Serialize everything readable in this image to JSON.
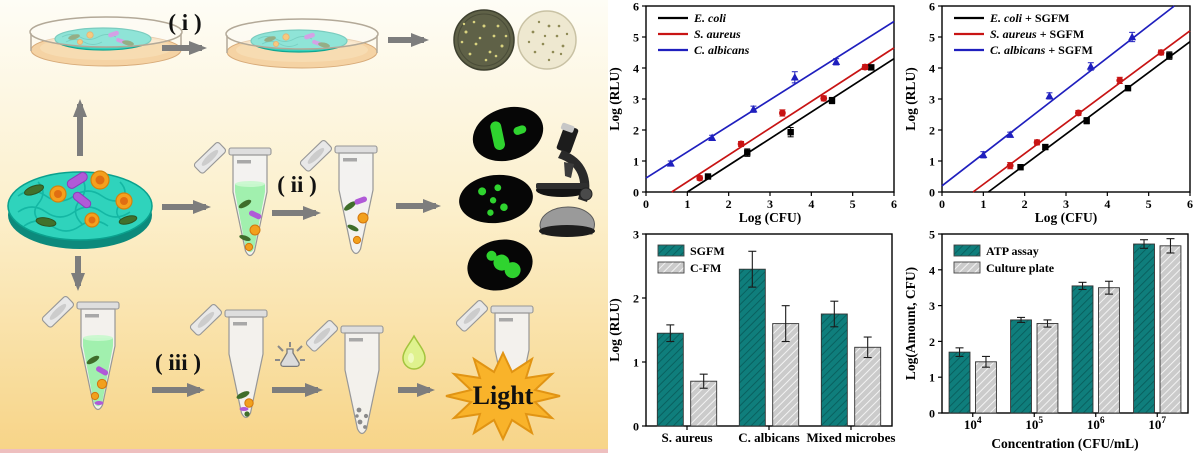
{
  "figure": {
    "left_panel_bg_top": "#fefdf6",
    "left_panel_bg_mid": "#fcf0cd",
    "left_panel_bg_bottom": "#f7d487",
    "accent_teal": "#0f7e7c",
    "arrow_gray": "#7d7d7d"
  },
  "diagram": {
    "step_labels": {
      "step1": "( i )",
      "step2": "( ii )",
      "step3": "( iii )"
    },
    "light_label": "Light"
  },
  "chart_data": [
    {
      "id": "calibration-curves",
      "position": "top-left",
      "type": "scatter",
      "xlabel": "Log (CFU)",
      "ylabel": "Log (RLU)",
      "xlim": [
        0,
        6
      ],
      "ylim": [
        0,
        6
      ],
      "xticks": [
        "0",
        "1",
        "2",
        "3",
        "4",
        "5",
        "6"
      ],
      "yticks": [
        "0",
        "1",
        "2",
        "3",
        "4",
        "5",
        "6"
      ],
      "legend_position": "top-left",
      "series": [
        {
          "name": "E. coli",
          "name_italic": "E. coli",
          "name_rest": "",
          "color": "#000000",
          "marker": "square",
          "x": [
            1.5,
            2.45,
            3.5,
            4.5,
            5.45
          ],
          "y": [
            0.5,
            1.27,
            1.93,
            2.95,
            4.02
          ],
          "yerr": [
            0.08,
            0.12,
            0.15,
            0.1,
            0.08
          ],
          "fit_line": {
            "x1": 1.0,
            "y1": 0,
            "x2": 6,
            "y2": 4.3
          }
        },
        {
          "name": "S. aureus",
          "name_italic": "S. aureus",
          "name_rest": "",
          "color": "#c81414",
          "marker": "circle",
          "x": [
            1.3,
            2.3,
            3.3,
            4.3,
            5.3
          ],
          "y": [
            0.45,
            1.55,
            2.55,
            3.02,
            4.03
          ],
          "yerr": [
            0.07,
            0.08,
            0.1,
            0.08,
            0.08
          ],
          "fit_line": {
            "x1": 0.62,
            "y1": 0,
            "x2": 6,
            "y2": 4.65
          }
        },
        {
          "name": "C. albicans",
          "name_italic": "C. albicans",
          "name_rest": "",
          "color": "#1f1fbe",
          "marker": "triangle",
          "x": [
            0.6,
            1.6,
            2.6,
            3.6,
            4.6
          ],
          "y": [
            0.92,
            1.75,
            2.67,
            3.7,
            4.2
          ],
          "yerr": [
            0.08,
            0.08,
            0.1,
            0.18,
            0.1
          ],
          "fit_line": {
            "x1": 0,
            "y1": 0.45,
            "x2": 6,
            "y2": 5.5
          }
        }
      ]
    },
    {
      "id": "calibration-curves-sgfm",
      "position": "top-right",
      "type": "scatter",
      "xlabel": "Log (CFU)",
      "ylabel": "Log (RLU)",
      "xlim": [
        0,
        6
      ],
      "ylim": [
        0,
        6
      ],
      "xticks": [
        "0",
        "1",
        "2",
        "3",
        "4",
        "5",
        "6"
      ],
      "yticks": [
        "0",
        "1",
        "2",
        "3",
        "4",
        "5",
        "6"
      ],
      "legend_position": "top-left",
      "series": [
        {
          "name": "E. coli + SGFM",
          "name_italic": "E. coli",
          "name_rest": " + SGFM",
          "color": "#000000",
          "marker": "square",
          "x": [
            1.9,
            2.5,
            3.5,
            4.5,
            5.5
          ],
          "y": [
            0.8,
            1.45,
            2.3,
            3.35,
            4.4
          ],
          "yerr": [
            0.08,
            0.08,
            0.1,
            0.08,
            0.12
          ],
          "fit_line": {
            "x1": 1.12,
            "y1": 0,
            "x2": 6,
            "y2": 4.85
          }
        },
        {
          "name": "S. aureus + SGFM",
          "name_italic": "S. aureus",
          "name_rest": " + SGFM",
          "color": "#c81414",
          "marker": "circle",
          "x": [
            1.65,
            2.3,
            3.3,
            4.3,
            5.3
          ],
          "y": [
            0.85,
            1.6,
            2.55,
            3.6,
            4.5
          ],
          "yerr": [
            0.1,
            0.08,
            0.08,
            0.1,
            0.08
          ],
          "fit_line": {
            "x1": 0.75,
            "y1": 0,
            "x2": 6,
            "y2": 5.2
          }
        },
        {
          "name": "C. albicans + SGFM",
          "name_italic": "C. albicans",
          "name_rest": " + SGFM",
          "color": "#1f1fbe",
          "marker": "triangle",
          "x": [
            1.0,
            1.65,
            2.6,
            3.6,
            4.6
          ],
          "y": [
            1.2,
            1.85,
            3.1,
            4.05,
            5.0
          ],
          "yerr": [
            0.1,
            0.08,
            0.1,
            0.12,
            0.15
          ],
          "fit_line": {
            "x1": 0,
            "y1": 0.2,
            "x2": 5.62,
            "y2": 6
          }
        }
      ]
    },
    {
      "id": "sgfm-vs-cfm",
      "position": "bottom-left",
      "type": "bar",
      "xlabel": "",
      "ylabel": "Log (RLU)",
      "ylim": [
        0,
        3
      ],
      "yticks": [
        "0",
        "1",
        "2",
        "3"
      ],
      "categories": [
        "S. aureus",
        "C. albicans",
        "Mixed microbes"
      ],
      "categories_italic": true,
      "legend_position": "top-left",
      "series": [
        {
          "name": "SGFM",
          "color": "#0f7e7c",
          "hatch_color": "rgba(0,40,40,0.38)",
          "values": [
            1.45,
            2.45,
            1.75
          ],
          "yerr": [
            0.13,
            0.28,
            0.2
          ]
        },
        {
          "name": "C-FM",
          "color": "#cbcbcb",
          "hatch_color": "rgba(255,255,255,0.85)",
          "values": [
            0.7,
            1.6,
            1.23
          ],
          "yerr": [
            0.11,
            0.28,
            0.16
          ]
        }
      ]
    },
    {
      "id": "atp-vs-culture-plate",
      "position": "bottom-right",
      "type": "bar",
      "xlabel": "Concentration (CFU/mL)",
      "ylabel": "Log(Amount, CFU)",
      "ylim": [
        0,
        5
      ],
      "yticks": [
        "0",
        "1",
        "2",
        "3",
        "4",
        "5"
      ],
      "categories": [
        "10^4",
        "10^5",
        "10^6",
        "10^7"
      ],
      "categories_italic": false,
      "legend_position": "top-left",
      "series": [
        {
          "name": "ATP assay",
          "color": "#0f7e7c",
          "hatch_color": "rgba(0,40,40,0.38)",
          "values": [
            1.7,
            2.6,
            3.55,
            4.72
          ],
          "yerr": [
            0.12,
            0.07,
            0.1,
            0.12
          ]
        },
        {
          "name": "Culture plate",
          "color": "#cbcbcb",
          "hatch_color": "rgba(255,255,255,0.85)",
          "values": [
            1.43,
            2.5,
            3.5,
            4.67
          ],
          "yerr": [
            0.15,
            0.1,
            0.18,
            0.2
          ]
        }
      ]
    }
  ]
}
